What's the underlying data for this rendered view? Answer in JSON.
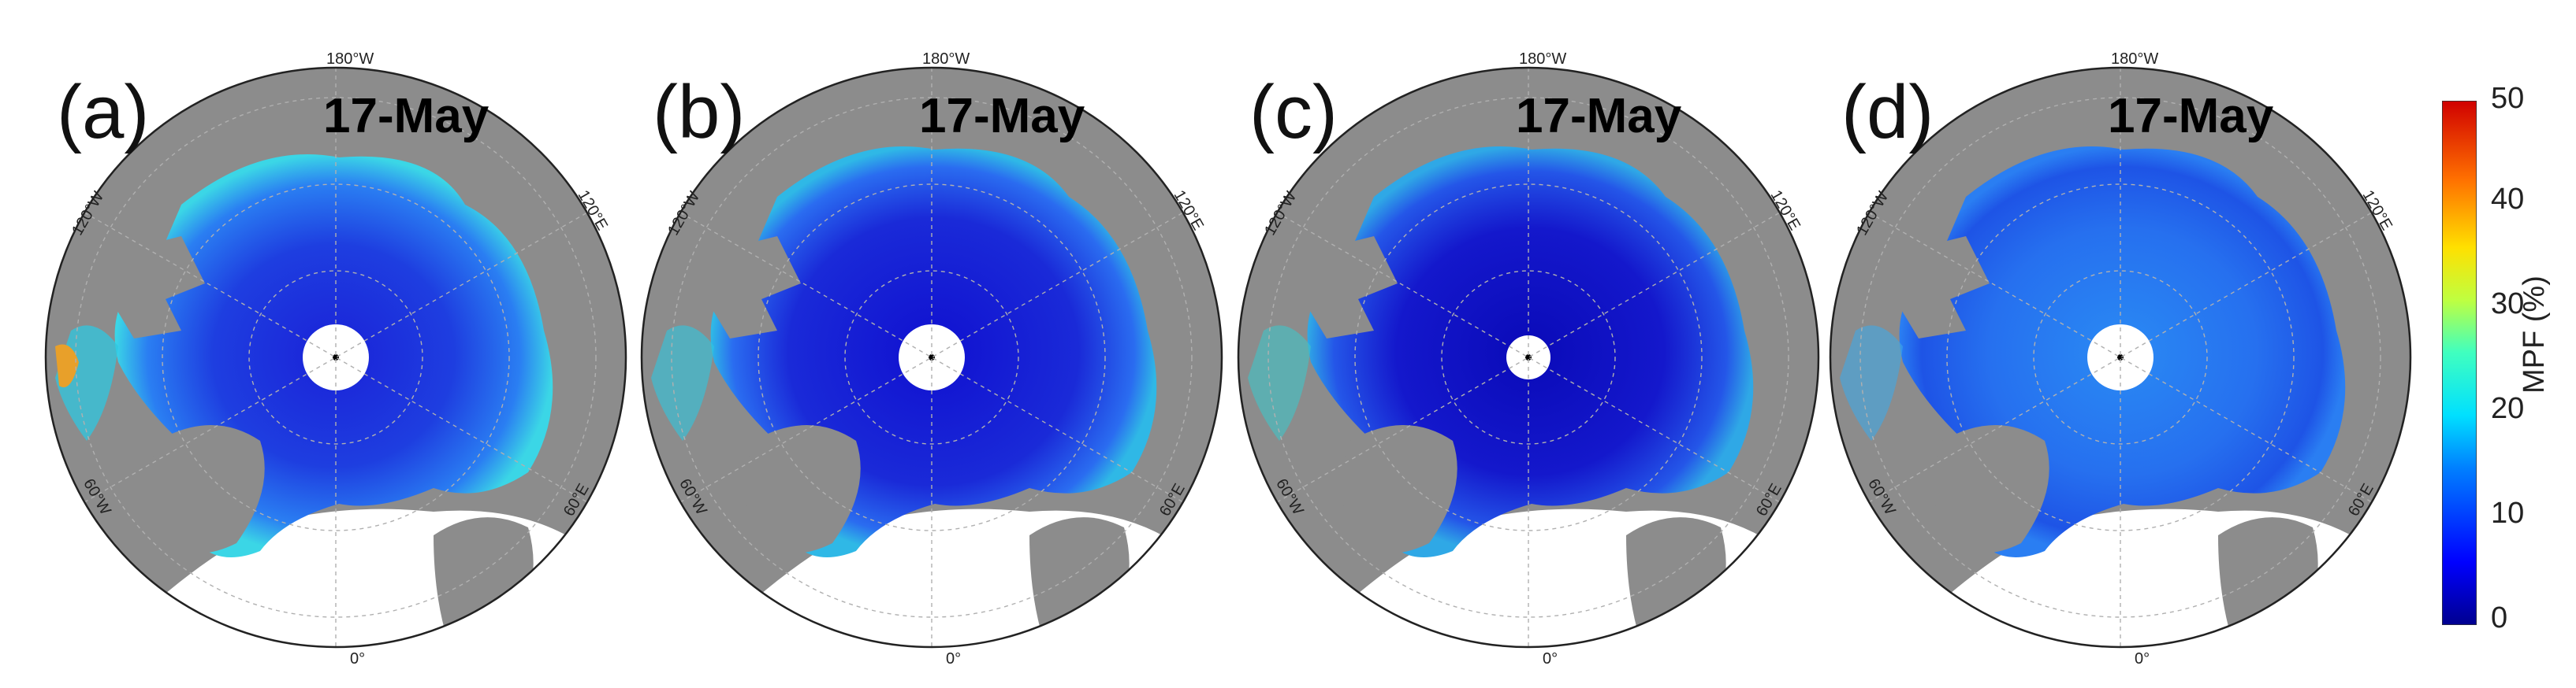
{
  "panels": [
    {
      "label": "(a)",
      "date": "17-May",
      "lon_top": "180°W",
      "lon_bottom": "0°",
      "lon_120w": "120°W",
      "lon_120e": "120°E",
      "lon_60w": "60°W",
      "lon_60e": "60°E"
    },
    {
      "label": "(b)",
      "date": "17-May",
      "lon_top": "180°W",
      "lon_bottom": "0°",
      "lon_120w": "120°W",
      "lon_120e": "120°E",
      "lon_60w": "60°W",
      "lon_60e": "60°E"
    },
    {
      "label": "(c)",
      "date": "17-May",
      "lon_top": "180°W",
      "lon_bottom": "0°",
      "lon_120w": "120°W",
      "lon_120e": "120°E",
      "lon_60w": "60°W",
      "lon_60e": "60°E"
    },
    {
      "label": "(d)",
      "date": "17-May",
      "lon_top": "180°W",
      "lon_bottom": "0°",
      "lon_120w": "120°W",
      "lon_120e": "120°E",
      "lon_60w": "60°W",
      "lon_60e": "60°E"
    }
  ],
  "colorbar": {
    "title": "MPF (%)",
    "ticks": [
      "0",
      "10",
      "20",
      "30",
      "40",
      "50"
    ],
    "min": 0,
    "max": 50
  },
  "colors": {
    "land": "#8c8c8c",
    "open_water": "#ffffff",
    "grid": "#b0b0b0",
    "ice_low": "#1a1fd6",
    "ice_mid": "#2a6cf0",
    "ice_high": "#2fd9e6"
  }
}
